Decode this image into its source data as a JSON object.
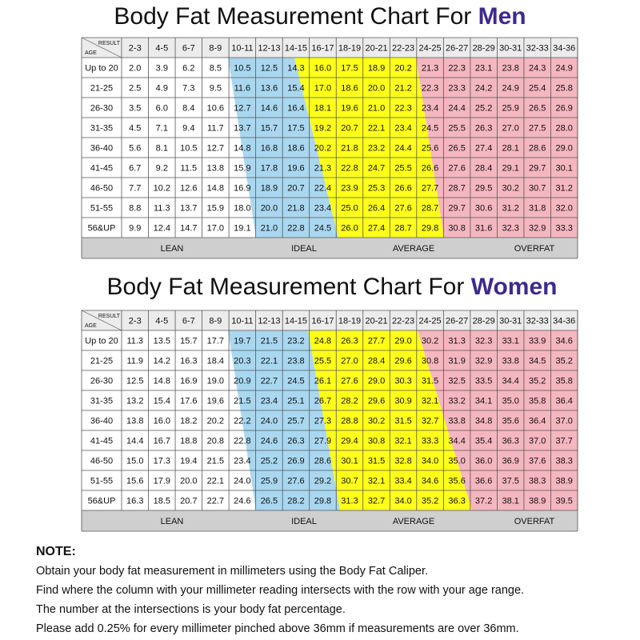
{
  "men": {
    "title_prefix": "Body Fat Measurement Chart For",
    "title_highlight": "Men",
    "corner_top": "RESULT",
    "corner_bottom": "AGE",
    "columns": [
      "2-3",
      "4-5",
      "6-7",
      "8-9",
      "10-11",
      "12-13",
      "14-15",
      "16-17",
      "18-19",
      "20-21",
      "22-23",
      "24-25",
      "26-27",
      "28-29",
      "30-31",
      "32-33",
      "34-36"
    ],
    "rows": [
      {
        "age": "Up to 20",
        "values": [
          "2.0",
          "3.9",
          "6.2",
          "8.5",
          "10.5",
          "12.5",
          "14.3",
          "16.0",
          "17.5",
          "18.9",
          "20.2",
          "21.3",
          "22.3",
          "23.1",
          "23.8",
          "24.3",
          "24.9"
        ]
      },
      {
        "age": "21-25",
        "values": [
          "2.5",
          "4.9",
          "7.3",
          "9.5",
          "11.6",
          "13.6",
          "15.4",
          "17.0",
          "18.6",
          "20.0",
          "21.2",
          "22.3",
          "23.3",
          "24.2",
          "24.9",
          "25.4",
          "25.8"
        ]
      },
      {
        "age": "26-30",
        "values": [
          "3.5",
          "6.0",
          "8.4",
          "10.6",
          "12.7",
          "14.6",
          "16.4",
          "18.1",
          "19.6",
          "21.0",
          "22.3",
          "23.4",
          "24.4",
          "25.2",
          "25.9",
          "26.5",
          "26.9"
        ]
      },
      {
        "age": "31-35",
        "values": [
          "4.5",
          "7.1",
          "9.4",
          "11.7",
          "13.7",
          "15.7",
          "17.5",
          "19.2",
          "20.7",
          "22.1",
          "23.4",
          "24.5",
          "25.5",
          "26.3",
          "27.0",
          "27.5",
          "28.0"
        ]
      },
      {
        "age": "36-40",
        "values": [
          "5.6",
          "8.1",
          "10.5",
          "12.7",
          "14.8",
          "16.8",
          "18.6",
          "20.2",
          "21.8",
          "23.2",
          "24.4",
          "25.6",
          "26.5",
          "27.4",
          "28.1",
          "28.6",
          "29.0"
        ]
      },
      {
        "age": "41-45",
        "values": [
          "6.7",
          "9.2",
          "11.5",
          "13.8",
          "15.9",
          "17.8",
          "19.6",
          "21.3",
          "22.8",
          "24.7",
          "25.5",
          "26.6",
          "27.6",
          "28.4",
          "29.1",
          "29.7",
          "30.1"
        ]
      },
      {
        "age": "46-50",
        "values": [
          "7.7",
          "10.2",
          "12.6",
          "14.8",
          "16.9",
          "18.9",
          "20.7",
          "22.4",
          "23.9",
          "25.3",
          "26.6",
          "27.7",
          "28.7",
          "29.5",
          "30.2",
          "30.7",
          "31.2"
        ]
      },
      {
        "age": "51-55",
        "values": [
          "8.8",
          "11.3",
          "13.7",
          "15.9",
          "18.0",
          "20.0",
          "21.8",
          "23.4",
          "25.0",
          "26.4",
          "27.6",
          "28.7",
          "29.7",
          "30.6",
          "31.2",
          "31.8",
          "32.0"
        ]
      },
      {
        "age": "56&UP",
        "values": [
          "9.9",
          "12.4",
          "14.7",
          "17.0",
          "19.1",
          "21.0",
          "22.8",
          "24.5",
          "26.0",
          "27.4",
          "28.7",
          "29.8",
          "30.8",
          "31.6",
          "32.3",
          "32.9",
          "33.3"
        ]
      }
    ],
    "zones": [
      "LEAN",
      "IDEAL",
      "AVERAGE",
      "OVERFAT"
    ]
  },
  "women": {
    "title_prefix": "Body Fat Measurement Chart For",
    "title_highlight": "Women",
    "corner_top": "RESULT",
    "corner_bottom": "AGE",
    "columns": [
      "2-3",
      "4-5",
      "6-7",
      "8-9",
      "10-11",
      "12-13",
      "14-15",
      "16-17",
      "18-19",
      "20-21",
      "22-23",
      "24-25",
      "26-27",
      "28-29",
      "30-31",
      "32-33",
      "34-36"
    ],
    "rows": [
      {
        "age": "Up to 20",
        "values": [
          "11.3",
          "13.5",
          "15.7",
          "17.7",
          "19.7",
          "21.5",
          "23.2",
          "24.8",
          "26.3",
          "27.7",
          "29.0",
          "30.2",
          "31.3",
          "32.3",
          "33.1",
          "33.9",
          "34.6"
        ]
      },
      {
        "age": "21-25",
        "values": [
          "11.9",
          "14.2",
          "16.3",
          "18.4",
          "20.3",
          "22.1",
          "23.8",
          "25.5",
          "27.0",
          "28.4",
          "29.6",
          "30.8",
          "31.9",
          "32.9",
          "33.8",
          "34.5",
          "35.2"
        ]
      },
      {
        "age": "26-30",
        "values": [
          "12.5",
          "14.8",
          "16.9",
          "19.0",
          "20.9",
          "22.7",
          "24.5",
          "26.1",
          "27.6",
          "29.0",
          "30.3",
          "31.5",
          "32.5",
          "33.5",
          "34.4",
          "35.2",
          "35.8"
        ]
      },
      {
        "age": "31-35",
        "values": [
          "13.2",
          "15.4",
          "17.6",
          "19.6",
          "21.5",
          "23.4",
          "25.1",
          "26.7",
          "28.2",
          "29.6",
          "30.9",
          "32.1",
          "33.2",
          "34.1",
          "35.0",
          "35.8",
          "36.4"
        ]
      },
      {
        "age": "36-40",
        "values": [
          "13.8",
          "16.0",
          "18.2",
          "20.2",
          "22.2",
          "24.0",
          "25.7",
          "27.3",
          "28.8",
          "30.2",
          "31.5",
          "32.7",
          "33.8",
          "34.8",
          "35.6",
          "36.4",
          "37.0"
        ]
      },
      {
        "age": "41-45",
        "values": [
          "14.4",
          "16.7",
          "18.8",
          "20.8",
          "22.8",
          "24.6",
          "26.3",
          "27.9",
          "29.4",
          "30.8",
          "32.1",
          "33.3",
          "34.4",
          "35.4",
          "36.3",
          "37.0",
          "37.7"
        ]
      },
      {
        "age": "46-50",
        "values": [
          "15.0",
          "17.3",
          "19.4",
          "21.5",
          "23.4",
          "25.2",
          "26.9",
          "28.6",
          "30.1",
          "31.5",
          "32.8",
          "34.0",
          "35.0",
          "36.0",
          "36.9",
          "37.6",
          "38.3"
        ]
      },
      {
        "age": "51-55",
        "values": [
          "15.6",
          "17.9",
          "20.0",
          "22.1",
          "24.0",
          "25.9",
          "27.6",
          "29.2",
          "30.7",
          "32.1",
          "33.4",
          "34.6",
          "35.6",
          "36.6",
          "37.5",
          "38.3",
          "38.9"
        ]
      },
      {
        "age": "56&UP",
        "values": [
          "16.3",
          "18.5",
          "20.7",
          "22.7",
          "24.6",
          "26.5",
          "28.2",
          "29.8",
          "31.3",
          "32.7",
          "34.0",
          "35.2",
          "36.3",
          "37.2",
          "38.1",
          "38.9",
          "39.5"
        ]
      }
    ],
    "zones": [
      "LEAN",
      "IDEAL",
      "AVERAGE",
      "OVERFAT"
    ]
  },
  "note": {
    "heading": "NOTE:",
    "lines": [
      "Obtain your body fat measurement in millimeters using the Body Fat Caliper.",
      "Find where the column with your millimeter reading intersects with the row with your age range.",
      "The number at the intersections is your body fat percentage.",
      "Please add 0.25% for every millimeter pinched above 36mm if measurements are over 36mm."
    ]
  }
}
